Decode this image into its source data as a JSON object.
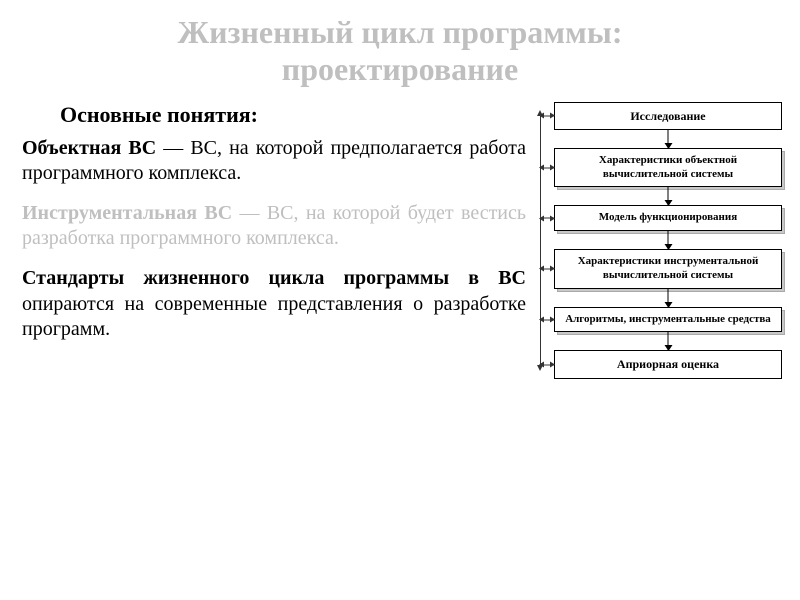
{
  "title_line1": "Жизненный цикл программы:",
  "title_line2": "проектирование",
  "subtitle": "Основные понятия:",
  "para1_bold": "Объектная ВС",
  "para1_rest": " — ВС, на которой предполагается работа программного комплекса.",
  "para2_bold": "Инструментальная ВС",
  "para2_rest": " — ВС, на которой будет вестись разработка программного комплекса.",
  "para3_bold": "Стандарты жизненного цикла программы в ВС",
  "para3_rest": " опираются на современные представления о разработке программ.",
  "flow": {
    "type": "flowchart",
    "background_color": "#ffffff",
    "box_border_color": "#000000",
    "shadow_color": "#c8c8c8",
    "arrow_color": "#000000",
    "rail_color": "#333333",
    "title_color": "#bfbfbf",
    "text_color": "#000000",
    "box_font_size_top": 12,
    "box_font_size_inner": 11,
    "nodes": [
      {
        "id": "n1",
        "label": "Исследование",
        "shadow": false
      },
      {
        "id": "n2",
        "label": "Характеристики объектной вычислительной системы",
        "shadow": true
      },
      {
        "id": "n3",
        "label": "Модель функционирования",
        "shadow": true
      },
      {
        "id": "n4",
        "label": "Характеристики инструментальной вычислительной системы",
        "shadow": true
      },
      {
        "id": "n5",
        "label": "Алгоритмы, инструментальные средства",
        "shadow": true
      },
      {
        "id": "n6",
        "label": "Априорная оценка",
        "shadow": false
      }
    ]
  }
}
